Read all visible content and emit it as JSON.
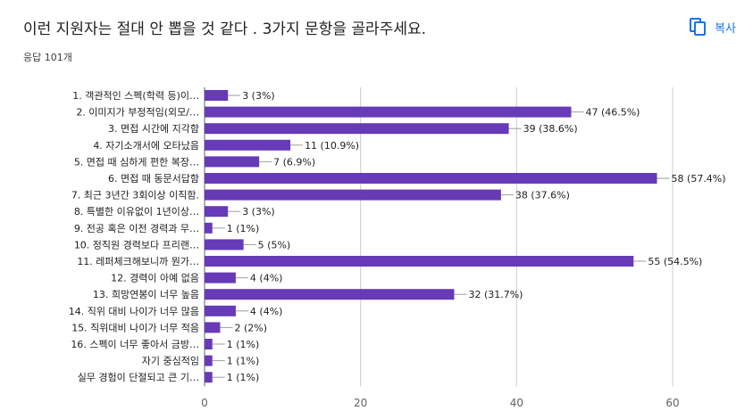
{
  "header": {
    "title": "이런 지원자는 절대 안 뽑을 것 같다 . 3가지 문항을 골라주세요.",
    "responses": "응답 101개",
    "copy_label": "복사",
    "copy_icon": "copy-icon"
  },
  "colors": {
    "bar": "#673ab7",
    "accent": "#1a73e8",
    "grid": "#cccccc",
    "axis": "#5f6368"
  },
  "chart_data": {
    "type": "bar",
    "orientation": "horizontal",
    "title": "",
    "xlabel": "",
    "ylabel": "",
    "xlim": [
      0,
      60
    ],
    "xticks": [
      0,
      20,
      40,
      60
    ],
    "grid": true,
    "categories": [
      "1. 객관적인 스펙(학력 등)이…",
      "2. 이미지가 부정적임(외모/…",
      "3. 면접 시간에 지각함",
      "4. 자기소개서에 오타났음",
      "5. 면접 때 심하게 편한 복장…",
      "6. 면접 때 동문서답함",
      "7. 최근 3년간 3회이상 이직함.",
      "8. 특별한 이유없이 1년이상…",
      "9. 전공 혹은 이전 경력과 무…",
      "10. 정직원 경력보다 프리랜…",
      "11. 레퍼체크해보니까 뭔가…",
      "12. 경력이 아예 없음",
      "13. 희망연봉이 너무 높음",
      "14. 직위 대비 나이가 너무 많음",
      "15. 직위대비 나이가 너무 적음",
      "16. 스펙이 너무 좋아서 금방…",
      "자기 중심적임",
      "실무 경험이 단절되고 큰 기…"
    ],
    "values": [
      3,
      47,
      39,
      11,
      7,
      58,
      38,
      3,
      1,
      5,
      55,
      4,
      32,
      4,
      2,
      1,
      1,
      1
    ],
    "data_labels": [
      "3 (3%)",
      "47 (46.5%)",
      "39 (38.6%)",
      "11 (10.9%)",
      "7 (6.9%)",
      "58 (57.4%)",
      "38 (37.6%)",
      "3 (3%)",
      "1 (1%)",
      "5 (5%)",
      "55 (54.5%)",
      "4 (4%)",
      "32 (31.7%)",
      "4 (4%)",
      "2 (2%)",
      "1 (1%)",
      "1 (1%)",
      "1 (1%)"
    ]
  }
}
